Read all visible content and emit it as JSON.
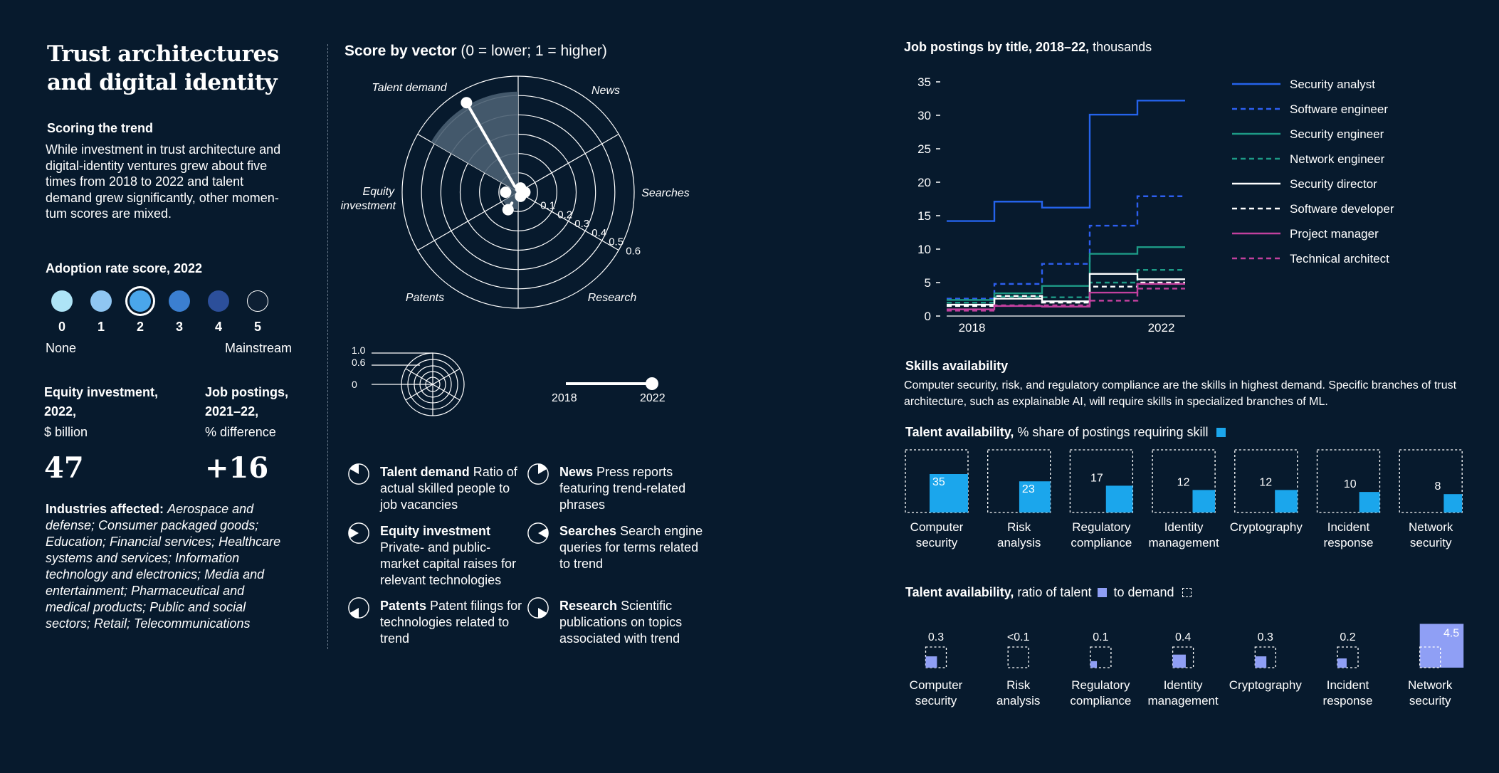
{
  "left": {
    "title": "Trust architectures and digital identity",
    "scoring_heading": "Scoring the trend",
    "scoring_text": "While investment in trust architecture and digital-identity ventures grew about five times from 2018 to 2022 and talent demand grew significantly, other momen-tum scores are mixed.",
    "adoption_heading": "Adoption rate score, 2022",
    "adoption_levels": [
      "0",
      "1",
      "2",
      "3",
      "4",
      "5"
    ],
    "adoption_selected": 2,
    "adoption_colors": [
      "#aee4f6",
      "#8fc6f2",
      "#4aa6ea",
      "#3b7fd0",
      "#2c4f9a",
      "#0d1f33"
    ],
    "adoption_min_label": "None",
    "adoption_max_label": "Mainstream",
    "equity_heading_1": "Equity investment,",
    "equity_heading_2": "2022,",
    "equity_unit": "$ billion",
    "equity_value": "47",
    "jobs_heading_1": "Job postings,",
    "jobs_heading_2": "2021–22,",
    "jobs_unit": "% difference",
    "jobs_value": "+16",
    "industries_label": "Industries affected:",
    "industries_text": "Aerospace and defense; Consumer packaged goods; Education; Financial services; Healthcare systems and services; Information technology and electronics; Media and entertainment; Pharmaceutical and medical products; Public and social sectors; Retail; Telecommunications"
  },
  "radar": {
    "title_bold": "Score by vector",
    "title_rest": " (0 = lower; 1 = higher)",
    "axes": [
      "Talent demand",
      "News",
      "Searches",
      "Research",
      "Patents",
      "Equity investment"
    ],
    "equity_label_1": "Equity",
    "equity_label_2": "investment",
    "ring_labels": [
      "0.1",
      "0.2",
      "0.3",
      "0.4",
      "0.5",
      "0.6"
    ],
    "scores_2018": {
      "Talent demand": 0.02,
      "News": 0.01,
      "Searches": 0.02,
      "Research": 0.01,
      "Patents": 0.05,
      "Equity investment": 0.05
    },
    "scores_2022": {
      "Talent demand": 0.52,
      "News": 0.01,
      "Searches": 0.02,
      "Research": 0.01,
      "Patents": 0.09,
      "Equity investment": 0.05
    },
    "key_scale": [
      "1.0",
      "0.6",
      "0"
    ],
    "slider_start": "2018",
    "slider_end": "2022"
  },
  "legend": [
    {
      "name": "Talent demand",
      "desc": "Ratio of actual skilled people to job vacancies"
    },
    {
      "name": "News",
      "desc": "Press reports featuring trend-related phrases"
    },
    {
      "name": "Equity investment",
      "desc": "Private- and public-market capital raises for relevant technologies"
    },
    {
      "name": "Searches",
      "desc": "Search engine queries for terms related to trend"
    },
    {
      "name": "Patents",
      "desc": "Patent filings for technologies related to trend"
    },
    {
      "name": "Research",
      "desc": "Scientific publications on topics associated with trend"
    }
  ],
  "jobs_chart": {
    "title_bold": "Job postings by title, 2018–22,",
    "title_rest": " thousands"
  },
  "skills": {
    "heading": "Skills availability",
    "text": "Computer security, risk, and regulatory compliance are the skills in highest demand. Specific branches of trust architecture, such as explainable AI, will require skills in specialized branches of ML.",
    "share_title_bold": "Talent availability,",
    "share_title_rest": " % share of postings requiring skill",
    "ratio_title_bold": "Talent availability,",
    "ratio_title_mid": " ratio of talent",
    "ratio_title_end": " to demand",
    "colors": {
      "share": "#1ba6ec",
      "ratio": "#8f9ff5"
    }
  },
  "chart_data": [
    {
      "type": "line",
      "title": "Job postings by title, 2018–22, thousands",
      "x_tick_labels": [
        "2018",
        "2022"
      ],
      "x": [
        2018,
        2019,
        2020,
        2021,
        2022
      ],
      "ylim": [
        0,
        35
      ],
      "y_ticks": [
        0,
        5,
        10,
        15,
        20,
        25,
        30,
        35
      ],
      "step": true,
      "series": [
        {
          "name": "Security analyst",
          "values": [
            14.2,
            17.1,
            16.2,
            30.1,
            32.2
          ],
          "color": "#2563eb",
          "dash": false
        },
        {
          "name": "Software engineer",
          "values": [
            2.6,
            4.8,
            7.8,
            13.5,
            17.9
          ],
          "color": "#2d5ff0",
          "dash": true
        },
        {
          "name": "Security engineer",
          "values": [
            2.4,
            3.4,
            4.5,
            9.3,
            10.3
          ],
          "color": "#1d9a86",
          "dash": false
        },
        {
          "name": "Network engineer",
          "values": [
            2.0,
            2.9,
            2.8,
            5.0,
            6.9
          ],
          "color": "#1d9a86",
          "dash": true
        },
        {
          "name": "Security director",
          "values": [
            1.7,
            2.6,
            2.2,
            6.3,
            5.5
          ],
          "color": "#ffffff",
          "dash": false
        },
        {
          "name": "Software developer",
          "values": [
            1.5,
            3.0,
            2.0,
            4.4,
            5.0
          ],
          "color": "#ffffff",
          "dash": true
        },
        {
          "name": "Project manager",
          "values": [
            1.0,
            1.5,
            1.4,
            3.5,
            4.8
          ],
          "color": "#c2409e",
          "dash": false
        },
        {
          "name": "Technical architect",
          "values": [
            0.8,
            1.6,
            1.6,
            2.3,
            4.1
          ],
          "color": "#c2409e",
          "dash": true
        }
      ]
    },
    {
      "type": "bar",
      "title": "Talent availability, % share of postings requiring skill",
      "categories": [
        "Computer security",
        "Risk analysis",
        "Regulatory compliance",
        "Identity management",
        "Cryptography",
        "Incident response",
        "Network security"
      ],
      "values": [
        35,
        23,
        17,
        12,
        12,
        10,
        8
      ],
      "labels": [
        "35",
        "23",
        "17",
        "12",
        "12",
        "10",
        "8"
      ]
    },
    {
      "type": "bar",
      "title": "Talent availability, ratio of talent to demand",
      "categories": [
        "Computer security",
        "Risk analysis",
        "Regulatory compliance",
        "Identity management",
        "Cryptography",
        "Incident response",
        "Network security"
      ],
      "values": [
        0.3,
        0.05,
        0.1,
        0.4,
        0.3,
        0.2,
        4.5
      ],
      "labels": [
        "0.3",
        "<0.1",
        "0.1",
        "0.4",
        "0.3",
        "0.2",
        "4.5"
      ]
    }
  ]
}
